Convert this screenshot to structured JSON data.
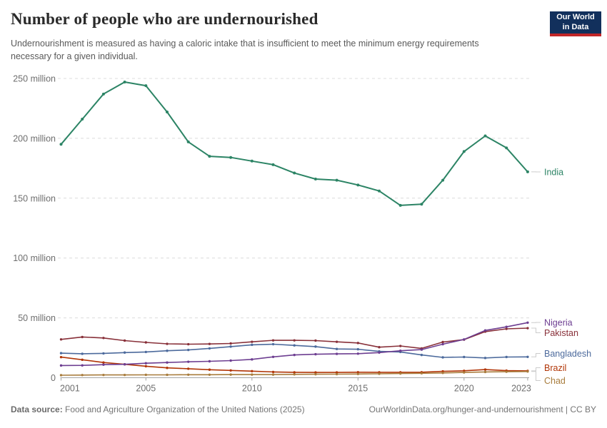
{
  "header": {
    "title": "Number of people who are undernourished",
    "subtitle": "Undernourishment is measured as having a caloric intake that is insufficient to meet the minimum energy requirements necessary for a given individual.",
    "logo": {
      "line1": "Our World",
      "line2": "in Data",
      "bg_color": "#12305C",
      "accent_color": "#C12628"
    }
  },
  "footer": {
    "source_label": "Data source:",
    "source_text": " Food and Agriculture Organization of the United Nations (2025)",
    "link_text": "OurWorldinData.org/hunger-and-undernourishment | CC BY"
  },
  "chart_data": {
    "type": "line",
    "title": "Number of people who are undernourished",
    "unit": "million people",
    "grid": "horizontal-dashed",
    "legend_position": "right of line ends",
    "x": [
      2001,
      2002,
      2003,
      2004,
      2005,
      2006,
      2007,
      2008,
      2009,
      2010,
      2011,
      2012,
      2013,
      2014,
      2015,
      2016,
      2017,
      2018,
      2019,
      2020,
      2021,
      2022,
      2023
    ],
    "xticks": [
      2001,
      2005,
      2010,
      2015,
      2020,
      2023
    ],
    "yticks": [
      0,
      50,
      100,
      150,
      200,
      250
    ],
    "ytick_labels": [
      "0",
      "50 million",
      "100 million",
      "150 million",
      "200 million",
      "250 million"
    ],
    "ylim": [
      0,
      262
    ],
    "series": [
      {
        "name": "India",
        "color": "#2C8465",
        "values": [
          195,
          216,
          237,
          247,
          244,
          222,
          197,
          185,
          184,
          181,
          178,
          171,
          166,
          165,
          161,
          156,
          144,
          145,
          165,
          189,
          202,
          192,
          172
        ]
      },
      {
        "name": "Pakistan",
        "color": "#883039",
        "values": [
          32,
          34,
          33.2,
          31,
          29.5,
          28.3,
          28,
          28.2,
          28.6,
          30,
          31.2,
          31.2,
          31,
          30,
          29,
          25.5,
          26.5,
          24.5,
          29.8,
          31.8,
          38.5,
          40.8,
          41.4
        ]
      },
      {
        "name": "Bangladesh",
        "color": "#4C6A9C",
        "values": [
          20.5,
          20,
          20.3,
          21,
          21.5,
          22.5,
          23.2,
          24.5,
          26,
          27.5,
          28,
          27,
          26,
          24,
          23.8,
          22,
          21.5,
          19,
          17,
          17.3,
          16.5,
          17.3,
          17.4
        ]
      },
      {
        "name": "Brazil",
        "color": "#B13507",
        "values": [
          17.2,
          15,
          12.7,
          11.2,
          9.6,
          8.2,
          7.5,
          6.7,
          6.1,
          5.5,
          4.8,
          4.5,
          4.4,
          4.4,
          4.6,
          4.5,
          4.5,
          4.6,
          5.3,
          5.8,
          6.8,
          5.9,
          5.7
        ]
      },
      {
        "name": "Nigeria",
        "color": "#6D3E91",
        "values": [
          10.2,
          10.3,
          10.9,
          11.2,
          12.1,
          12.7,
          13.3,
          13.7,
          14.3,
          15.3,
          17.4,
          19,
          19.6,
          19.9,
          20.1,
          21,
          22.5,
          23.5,
          28,
          32,
          39.5,
          42.5,
          46
        ]
      },
      {
        "name": "Chad",
        "color": "#A87C3C",
        "values": [
          2.1,
          2.2,
          2.3,
          2.3,
          2.4,
          2.4,
          2.5,
          2.5,
          2.6,
          2.6,
          2.6,
          2.8,
          2.9,
          3,
          3.1,
          3.3,
          3.5,
          3.7,
          4,
          4.4,
          4.8,
          5,
          5.2
        ]
      }
    ]
  }
}
